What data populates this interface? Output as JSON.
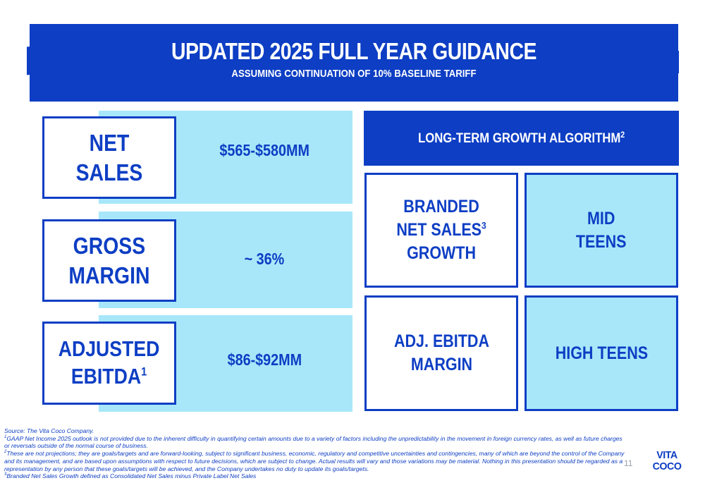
{
  "banner": {
    "title": "UPDATED 2025 FULL YEAR GUIDANCE",
    "subtitle": "ASSUMING CONTINUATION OF 10% BASELINE TARIFF"
  },
  "guidance": [
    {
      "label_lines": [
        "NET SALES"
      ],
      "value": "$565-$580MM"
    },
    {
      "label_lines": [
        "GROSS",
        "MARGIN"
      ],
      "value": "~ 36%"
    },
    {
      "label_lines": [
        "ADJUSTED",
        "EBITDA"
      ],
      "label_sup": "1",
      "value": "$86-$92MM"
    }
  ],
  "ltga": {
    "header": "LONG-TERM GROWTH ALGORITHM",
    "header_sup": "2",
    "rows": [
      {
        "metric_lines": [
          "BRANDED",
          "NET SALES",
          "GROWTH"
        ],
        "metric_sup": "3",
        "target_lines": [
          "MID",
          "TEENS"
        ]
      },
      {
        "metric_lines": [
          "ADJ. EBITDA",
          "MARGIN"
        ],
        "target_lines": [
          "HIGH TEENS"
        ]
      }
    ]
  },
  "footnotes": {
    "source": "Source: The Vita Coco Company.",
    "note1": "GAAP Net Income 2025 outlook is not provided due to the inherent difficulty in quantifying certain amounts due to a variety of factors including the unpredictability in the movement in foreign currency rates, as well as future charges or reversals outside of the normal course of business.",
    "note2": "These are not projections; they are goals/targets and are forward-looking, subject to significant business, economic, regulatory and competitive uncertainties and contingencies, many of which are beyond the control of the Company and its management, and are based upon assumptions with respect to future decisions, which are subject to change. Actual results will vary and those variations may be material. Nothing in this presentation should be regarded as a representation by any person that these goals/targets will be achieved, and the Company undertakes no duty to update its goals/targets.",
    "note3": "Branded Net Sales Growth defined as Consolidated Net Sales minus Private Label Net Sales"
  },
  "page_number": "11",
  "logo": {
    "line1": "VITA",
    "line2": "COCO"
  },
  "colors": {
    "brand_blue": "#0d3ec4",
    "light_blue": "#a8e7f9"
  }
}
